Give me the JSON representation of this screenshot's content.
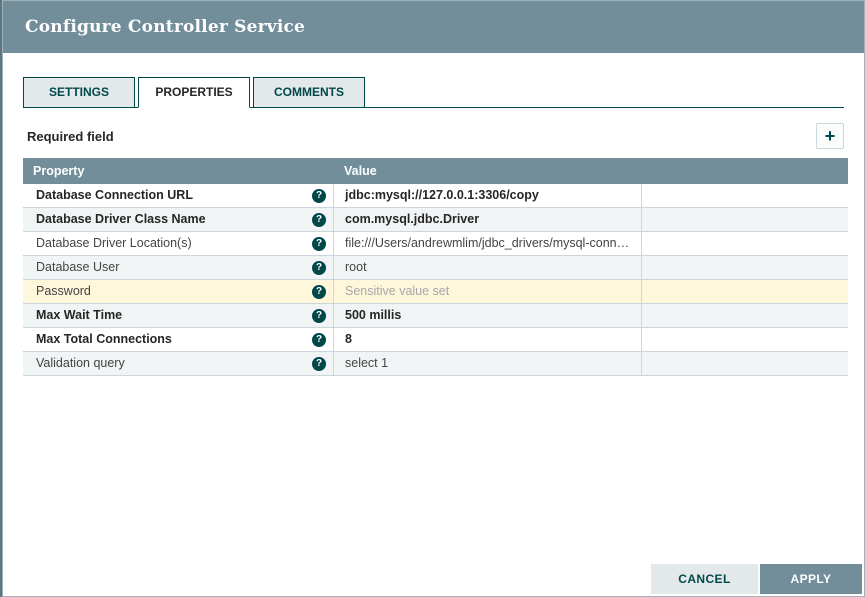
{
  "dialog": {
    "title": "Configure Controller Service",
    "tabs": [
      {
        "label": "SETTINGS",
        "active": false
      },
      {
        "label": "PROPERTIES",
        "active": true
      },
      {
        "label": "COMMENTS",
        "active": false
      }
    ],
    "legend": "Required field",
    "icons": {
      "add": "+",
      "help": "?"
    },
    "table": {
      "columns": [
        "Property",
        "Value"
      ],
      "rows": [
        {
          "property": "Database Connection URL",
          "value": "jdbc:mysql://127.0.0.1:3306/copy",
          "required": true,
          "highlighted": false,
          "value_muted": false
        },
        {
          "property": "Database Driver Class Name",
          "value": "com.mysql.jdbc.Driver",
          "required": true,
          "highlighted": false,
          "value_muted": false
        },
        {
          "property": "Database Driver Location(s)",
          "value": "file:///Users/andrewmlim/jdbc_drivers/mysql-connect…",
          "required": false,
          "highlighted": false,
          "value_muted": false
        },
        {
          "property": "Database User",
          "value": "root",
          "required": false,
          "highlighted": false,
          "value_muted": false
        },
        {
          "property": "Password",
          "value": "Sensitive value set",
          "required": false,
          "highlighted": true,
          "value_muted": true
        },
        {
          "property": "Max Wait Time",
          "value": "500 millis",
          "required": true,
          "highlighted": false,
          "value_muted": false
        },
        {
          "property": "Max Total Connections",
          "value": "8",
          "required": true,
          "highlighted": false,
          "value_muted": false
        },
        {
          "property": "Validation query",
          "value": "select 1",
          "required": false,
          "highlighted": false,
          "value_muted": false
        }
      ]
    },
    "footer": {
      "cancel_label": "CANCEL",
      "apply_label": "APPLY"
    },
    "colors": {
      "header_bg": "#728e9b",
      "accent_teal": "#004849",
      "tab_inactive_bg": "#e3e8eb",
      "row_alt_bg": "#f1f4f5",
      "highlight_row_bg": "#fef7dc",
      "muted_text": "#a7a7a7"
    }
  }
}
